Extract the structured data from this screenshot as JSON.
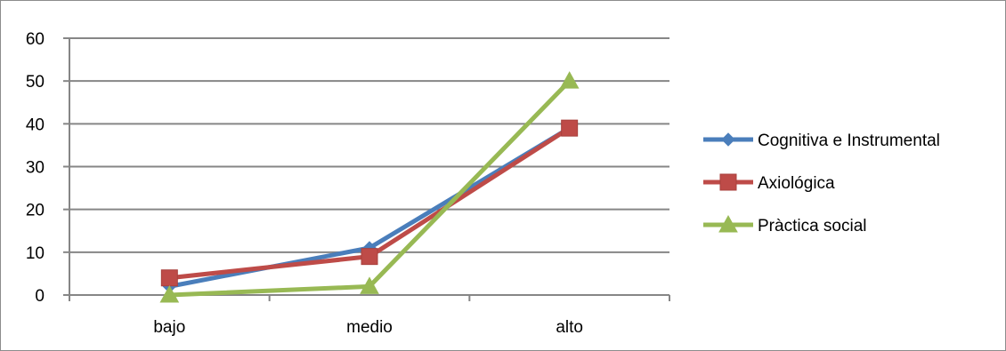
{
  "chart_data": {
    "type": "line",
    "categories": [
      "bajo",
      "medio",
      "alto"
    ],
    "ylim": [
      0,
      60
    ],
    "yticks": [
      0,
      10,
      20,
      30,
      40,
      50,
      60
    ],
    "grid": true,
    "legend_position": "right",
    "series": [
      {
        "name": "Cognitiva e Instrumental",
        "values": [
          2,
          11,
          39
        ],
        "color": "#4a7ebb",
        "marker": "diamond"
      },
      {
        "name": "Axiológica",
        "values": [
          4,
          9,
          39
        ],
        "color": "#be4b48",
        "marker": "square"
      },
      {
        "name": "Pràctica social",
        "values": [
          0,
          2,
          50
        ],
        "color": "#98b954",
        "marker": "triangle"
      }
    ]
  }
}
